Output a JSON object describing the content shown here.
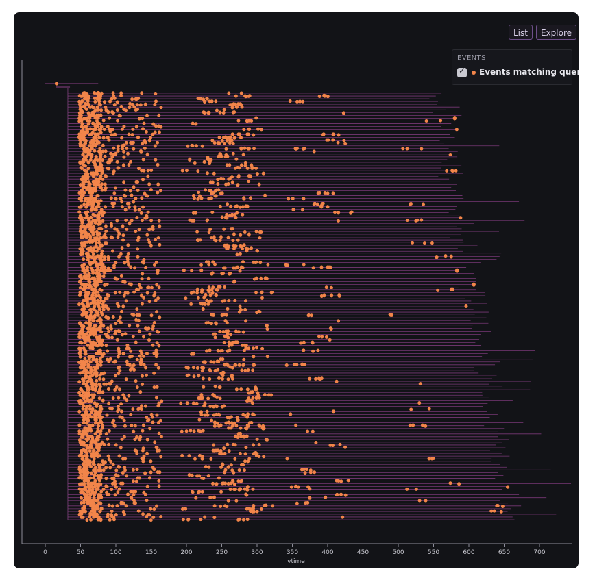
{
  "toolbar": {
    "list_label": "List",
    "explore_label": "Explore"
  },
  "legend": {
    "title": "EVENTS",
    "items": [
      {
        "label": "Events matching query",
        "checked": true
      }
    ]
  },
  "colors": {
    "background": "#121317",
    "span_line": "#8a3f86",
    "event_dot": "#f2854a",
    "axis": "#8d8d99",
    "text": "#c8c8d0"
  },
  "chart_data": {
    "type": "scatter",
    "xlabel": "vtime",
    "ylabel": "",
    "xlim": [
      -30,
      745
    ],
    "xticks": [
      0,
      50,
      100,
      150,
      200,
      250,
      300,
      350,
      400,
      450,
      500,
      550,
      600,
      650,
      700
    ],
    "rows": 155,
    "series": [
      {
        "name": "Events matching query",
        "color": "#f2854a"
      }
    ],
    "legend_position": "top-right",
    "grid": false,
    "event_clusters": [
      {
        "x_start": 48,
        "x_end": 80,
        "density": "very high"
      },
      {
        "x_start": 80,
        "x_end": 160,
        "density": "high"
      },
      {
        "x_start": 185,
        "x_end": 300,
        "density": "medium"
      },
      {
        "x_start": 330,
        "x_end": 430,
        "density": "low"
      },
      {
        "x_start": 480,
        "x_end": 680,
        "density": "sparse"
      }
    ],
    "span_end_range": [
      555,
      700
    ]
  }
}
